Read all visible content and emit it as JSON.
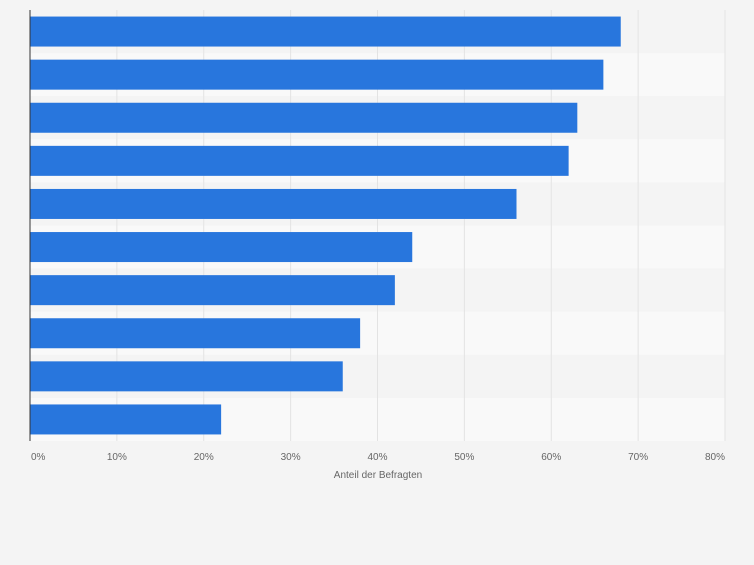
{
  "chart_data": {
    "type": "bar",
    "orientation": "horizontal",
    "title": "",
    "xlabel": "Anteil der Befragten",
    "ylabel": "",
    "xlim": [
      0,
      80
    ],
    "tick_values": [
      0,
      10,
      20,
      30,
      40,
      50,
      60,
      70,
      80
    ],
    "tick_labels": [
      "0%",
      "10%",
      "20%",
      "30%",
      "40%",
      "50%",
      "60%",
      "70%",
      "80%"
    ],
    "categories": [
      "",
      "",
      "",
      "",
      "",
      "",
      "",
      "",
      "",
      ""
    ],
    "values": [
      68,
      66,
      63,
      62,
      56,
      44,
      42,
      38,
      36,
      22
    ],
    "grid": true,
    "bar_color": "#2876dd",
    "band_colors": [
      "#f4f4f4",
      "#f9f9f9"
    ],
    "gridline_color": "#e3e3e3",
    "axis_color": "#333333",
    "tick_label_color": "#666666"
  }
}
